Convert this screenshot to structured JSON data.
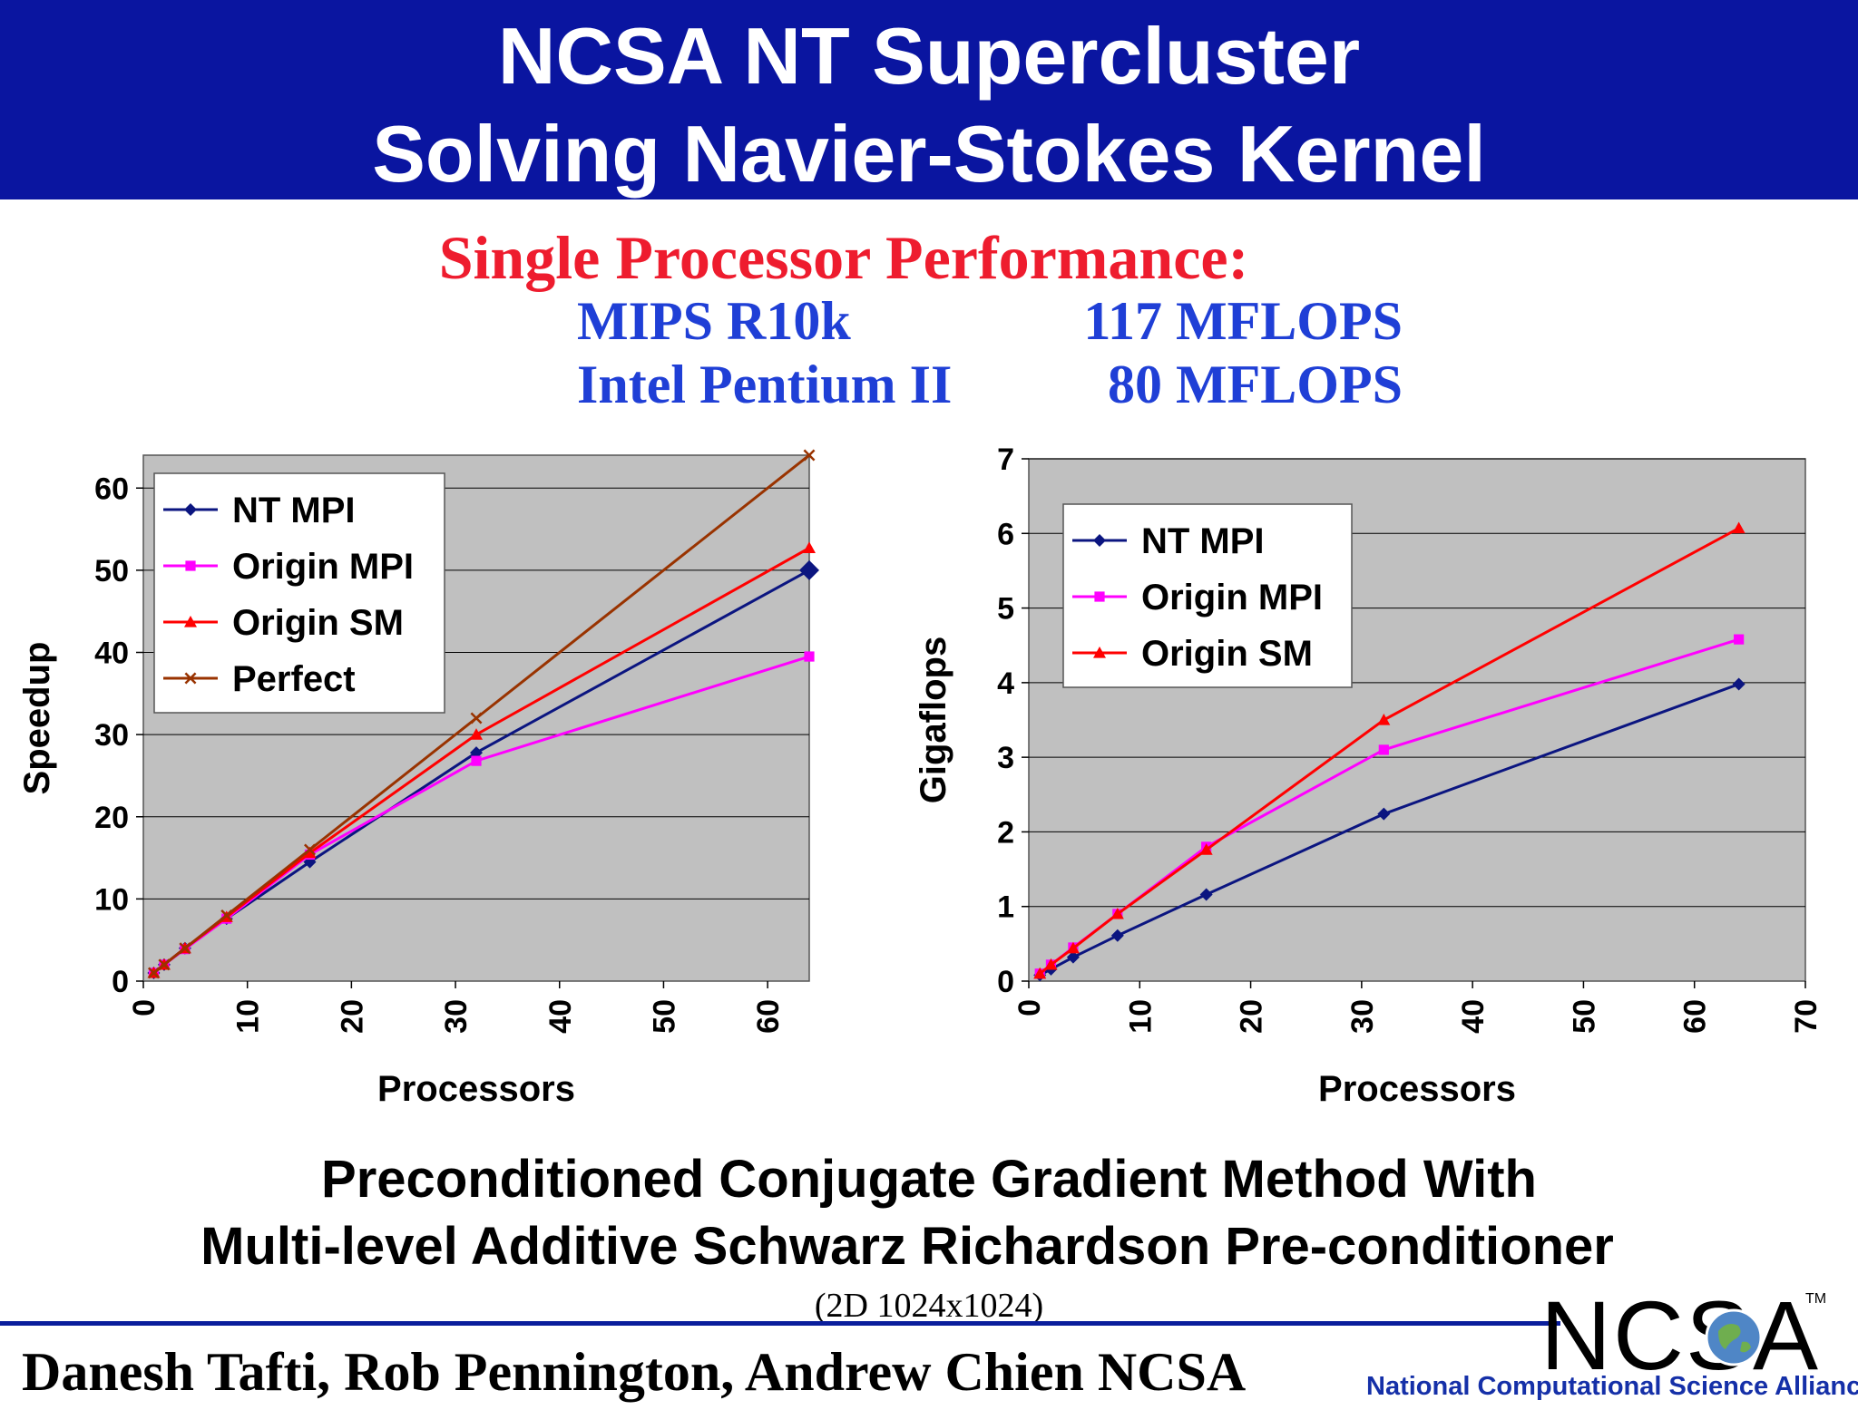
{
  "header": {
    "line1": "NCSA NT Supercluster",
    "line2": "Solving Navier-Stokes Kernel",
    "background": "#0a15a0"
  },
  "single_processor": {
    "title": "Single Processor Performance:",
    "rows": [
      {
        "name": "MIPS R10k",
        "value": "117 MFLOPS"
      },
      {
        "name": "Intel Pentium II",
        "value": "80 MFLOPS"
      }
    ]
  },
  "chart_data": [
    {
      "type": "line",
      "xlabel": "Processors",
      "ylabel": "Speedup",
      "xlim": [
        0,
        64
      ],
      "ylim": [
        0,
        64
      ],
      "xticks": [
        "0",
        "10",
        "20",
        "30",
        "40",
        "50",
        "60"
      ],
      "yticks": [
        "0",
        "10",
        "20",
        "30",
        "40",
        "50",
        "60"
      ],
      "grid": true,
      "legend": "top-left",
      "series": [
        {
          "name": "NT MPI",
          "color": "#0b1580",
          "marker": "diamond",
          "x": [
            1,
            2,
            4,
            8,
            16,
            32,
            64
          ],
          "y": [
            1,
            2,
            4,
            7.6,
            14.5,
            27.8,
            50
          ]
        },
        {
          "name": "Origin MPI",
          "color": "#ff00ff",
          "marker": "square",
          "x": [
            1,
            2,
            4,
            8,
            16,
            32,
            64
          ],
          "y": [
            1,
            2,
            3.9,
            7.6,
            15.4,
            26.8,
            39.5
          ]
        },
        {
          "name": "Origin SM",
          "color": "#ff0000",
          "marker": "triangle",
          "x": [
            1,
            2,
            4,
            8,
            16,
            32,
            64
          ],
          "y": [
            1,
            2,
            4,
            7.8,
            15.6,
            30,
            52.7
          ]
        },
        {
          "name": "Perfect",
          "color": "#993300",
          "marker": "x",
          "x": [
            1,
            2,
            4,
            8,
            16,
            32,
            64
          ],
          "y": [
            1,
            2,
            4,
            8,
            16,
            32,
            64
          ]
        }
      ]
    },
    {
      "type": "line",
      "xlabel": "Processors",
      "ylabel": "Gigaflops",
      "xlim": [
        0,
        70
      ],
      "ylim": [
        0,
        7
      ],
      "xticks": [
        "0",
        "10",
        "20",
        "30",
        "40",
        "50",
        "60",
        "70"
      ],
      "yticks": [
        "0",
        "1",
        "2",
        "3",
        "4",
        "5",
        "6",
        "7"
      ],
      "grid": true,
      "legend": "top-left",
      "series": [
        {
          "name": "NT MPI",
          "color": "#0b1580",
          "marker": "diamond",
          "x": [
            1,
            2,
            4,
            8,
            16,
            32,
            64
          ],
          "y": [
            0.08,
            0.16,
            0.32,
            0.61,
            1.16,
            2.24,
            3.98
          ]
        },
        {
          "name": "Origin MPI",
          "color": "#ff00ff",
          "marker": "square",
          "x": [
            1,
            2,
            4,
            8,
            16,
            32,
            64
          ],
          "y": [
            0.1,
            0.22,
            0.45,
            0.9,
            1.8,
            3.1,
            4.58
          ]
        },
        {
          "name": "Origin SM",
          "color": "#ff0000",
          "marker": "triangle",
          "x": [
            1,
            2,
            4,
            8,
            16,
            32,
            64
          ],
          "y": [
            0.1,
            0.22,
            0.44,
            0.9,
            1.76,
            3.5,
            6.07
          ]
        }
      ]
    }
  ],
  "method": {
    "line1": "Preconditioned Conjugate Gradient Method With",
    "line2": "Multi-level Additive Schwarz Richardson Pre-conditioner",
    "dims": "(2D 1024x1024)"
  },
  "authors": "Danesh Tafti, Rob Pennington, Andrew Chien NCSA",
  "logo": {
    "text": "NCSA",
    "trademark": "TM",
    "tagline": "National Computational Science Alliance"
  },
  "colors": {
    "plot_bg": "#c0c0c0",
    "accent_red": "#ee1c2e",
    "accent_blue": "#1f3fd6"
  }
}
